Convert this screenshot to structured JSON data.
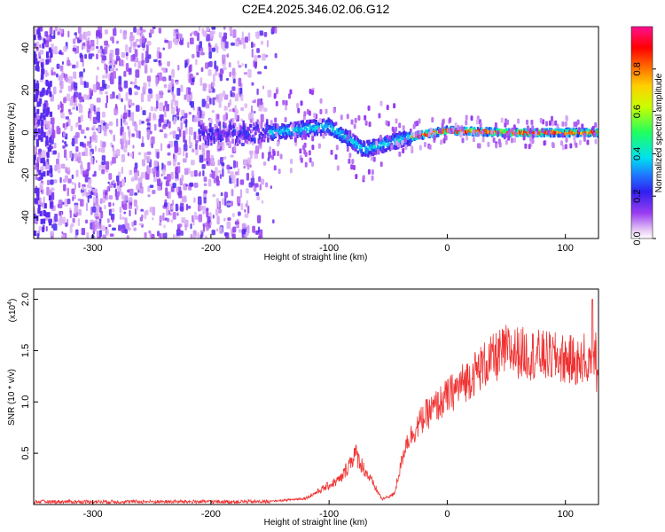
{
  "figure": {
    "title": "C2E4.2025.346.02.06.G12"
  },
  "chart_data": [
    {
      "type": "heatmap",
      "xlabel": "Height of straight line (km)",
      "ylabel": "Frequency (Hz)",
      "xlim": [
        -350,
        128
      ],
      "ylim": [
        -50,
        50
      ],
      "xticks": [
        -300,
        -200,
        -100,
        0,
        100
      ],
      "yticks": [
        -40,
        -20,
        0,
        20,
        40
      ],
      "colorbar": {
        "label": "Normalized spectral amplitude",
        "range": [
          0,
          1
        ],
        "ticks": [
          0.0,
          0.2,
          0.4,
          0.6,
          0.8
        ],
        "tick_labels": [
          "0.0",
          "0.2",
          "0.4",
          "0.6",
          "0.8"
        ],
        "colormap": "rainbow (white-purple-blue-cyan-green-yellow-orange-red-magenta)"
      },
      "description_points": [
        {
          "x": -350,
          "y_center": 0,
          "note": "broadband noise, all frequencies"
        },
        {
          "x": -150,
          "y_center": 0,
          "note": "noise ends"
        },
        {
          "x": -100,
          "y_center": 3
        },
        {
          "x": -70,
          "y_center": -8
        },
        {
          "x": -50,
          "y_center": -5
        },
        {
          "x": -30,
          "y_center": -2
        },
        {
          "x": 0,
          "y_center": 1
        },
        {
          "x": 50,
          "y_center": 0
        },
        {
          "x": 128,
          "y_center": 0
        }
      ],
      "grid": false
    },
    {
      "type": "line",
      "xlabel": "Height of straight line (km)",
      "ylabel": "SNR (10 * v/v)",
      "yscale_label": "(x10",
      "yscale_exponent": "4",
      "xlim": [
        -350,
        128
      ],
      "ylim": [
        0,
        2.1
      ],
      "xticks": [
        -300,
        -200,
        -100,
        0,
        100
      ],
      "yticks": [
        0.5,
        1.0,
        1.5,
        2.0
      ],
      "ytick_labels": [
        "0.5",
        "1.0",
        "1.5",
        "2.0"
      ],
      "series": [
        {
          "color": "#f03030",
          "envelope": [
            {
              "x": -350,
              "y": 0.03
            },
            {
              "x": -150,
              "y": 0.03
            },
            {
              "x": -120,
              "y": 0.06
            },
            {
              "x": -90,
              "y": 0.25
            },
            {
              "x": -78,
              "y": 0.5
            },
            {
              "x": -68,
              "y": 0.3
            },
            {
              "x": -55,
              "y": 0.05
            },
            {
              "x": -45,
              "y": 0.1
            },
            {
              "x": -35,
              "y": 0.6
            },
            {
              "x": -20,
              "y": 0.85
            },
            {
              "x": -5,
              "y": 1.0
            },
            {
              "x": 10,
              "y": 1.15
            },
            {
              "x": 30,
              "y": 1.35
            },
            {
              "x": 50,
              "y": 1.5
            },
            {
              "x": 80,
              "y": 1.45
            },
            {
              "x": 110,
              "y": 1.4
            },
            {
              "x": 128,
              "y": 1.5
            }
          ],
          "peak": {
            "x": 123,
            "y": 2.0
          }
        }
      ],
      "grid": false
    }
  ]
}
